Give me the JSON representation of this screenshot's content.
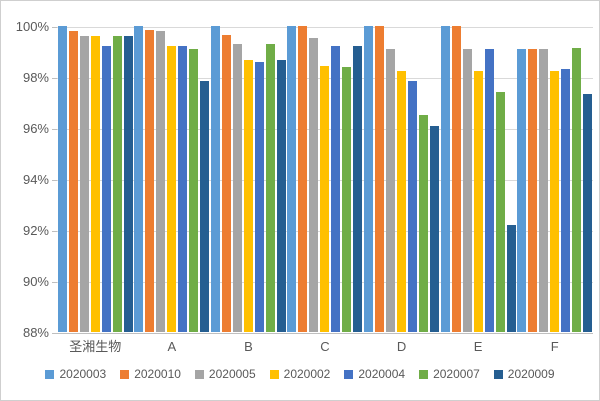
{
  "chart_data": {
    "type": "bar",
    "title": "",
    "categories": [
      "圣湘生物",
      "A",
      "B",
      "C",
      "D",
      "E",
      "F"
    ],
    "series": [
      {
        "name": "2020003",
        "color": "#5B9BD5",
        "values": [
          100,
          100,
          100,
          100,
          100,
          100,
          99.1
        ]
      },
      {
        "name": "2020010",
        "color": "#ED7D31",
        "values": [
          99.8,
          99.85,
          99.65,
          100,
          100,
          100,
          99.1
        ]
      },
      {
        "name": "2020005",
        "color": "#A5A5A5",
        "values": [
          99.6,
          99.8,
          99.3,
          99.55,
          99.1,
          99.1,
          99.1
        ]
      },
      {
        "name": "2020002",
        "color": "#FFC000",
        "values": [
          99.6,
          99.2,
          98.65,
          98.45,
          98.25,
          98.25,
          98.25
        ]
      },
      {
        "name": "2020004",
        "color": "#4472C4",
        "values": [
          99.2,
          99.2,
          98.6,
          99.2,
          97.85,
          99.1,
          98.3
        ]
      },
      {
        "name": "2020007",
        "color": "#70AD47",
        "values": [
          99.6,
          99.1,
          99.3,
          98.4,
          96.5,
          97.4,
          99.15
        ]
      },
      {
        "name": "2020009",
        "color": "#255E91",
        "values": [
          99.6,
          97.85,
          98.65,
          99.2,
          96.1,
          92.2,
          97.35
        ]
      }
    ],
    "ylim": [
      88,
      100
    ],
    "y_tick_step": 2,
    "y_tick_labels": [
      "100%",
      "98%",
      "96%",
      "94%",
      "92%",
      "90%",
      "88%"
    ],
    "grid": true,
    "legend_position": "bottom",
    "colors": {
      "gridline": "#d9d9d9",
      "axis_line": "#bfbfbf",
      "label_text": "#595959"
    }
  }
}
